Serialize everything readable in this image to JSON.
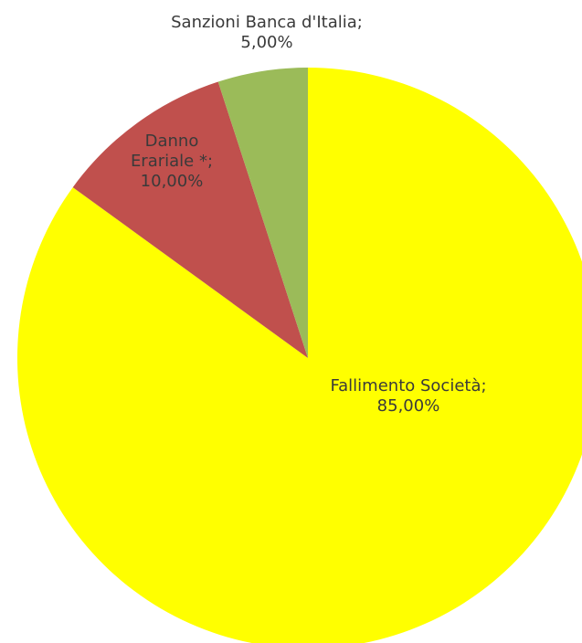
{
  "chart_data": {
    "type": "pie",
    "title": "",
    "start_angle_deg": 0,
    "direction": "clockwise",
    "slices": [
      {
        "label_lines": [
          "Fallimento Società;",
          "85,00%"
        ],
        "value": 85.0,
        "color": "#ffff00"
      },
      {
        "label_lines": [
          "Danno",
          "Erariale *;",
          "10,00%"
        ],
        "value": 10.0,
        "color": "#c0504d"
      },
      {
        "label_lines": [
          "Sanzioni Banca d'Italia;",
          "5,00%"
        ],
        "value": 5.0,
        "color": "#9bbb59"
      }
    ]
  }
}
